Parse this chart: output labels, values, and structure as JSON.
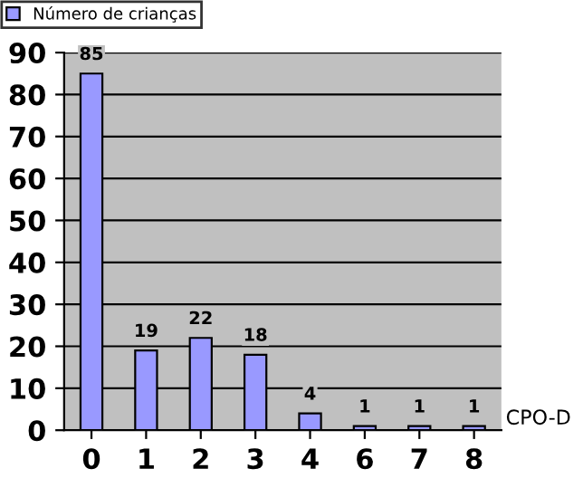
{
  "chart_data": {
    "type": "bar",
    "categories": [
      "0",
      "1",
      "2",
      "3",
      "4",
      "6",
      "7",
      "8"
    ],
    "series": [
      {
        "name": "Número de crianças",
        "color": "#9999ff",
        "values": [
          85,
          19,
          22,
          18,
          4,
          1,
          1,
          1
        ]
      }
    ],
    "xlabel": "CPO-D",
    "ylim": [
      0,
      90
    ],
    "yticks": [
      0,
      10,
      20,
      30,
      40,
      50,
      60,
      70,
      80,
      90
    ],
    "grid": "y",
    "legend": "top left",
    "data_labels": true
  }
}
